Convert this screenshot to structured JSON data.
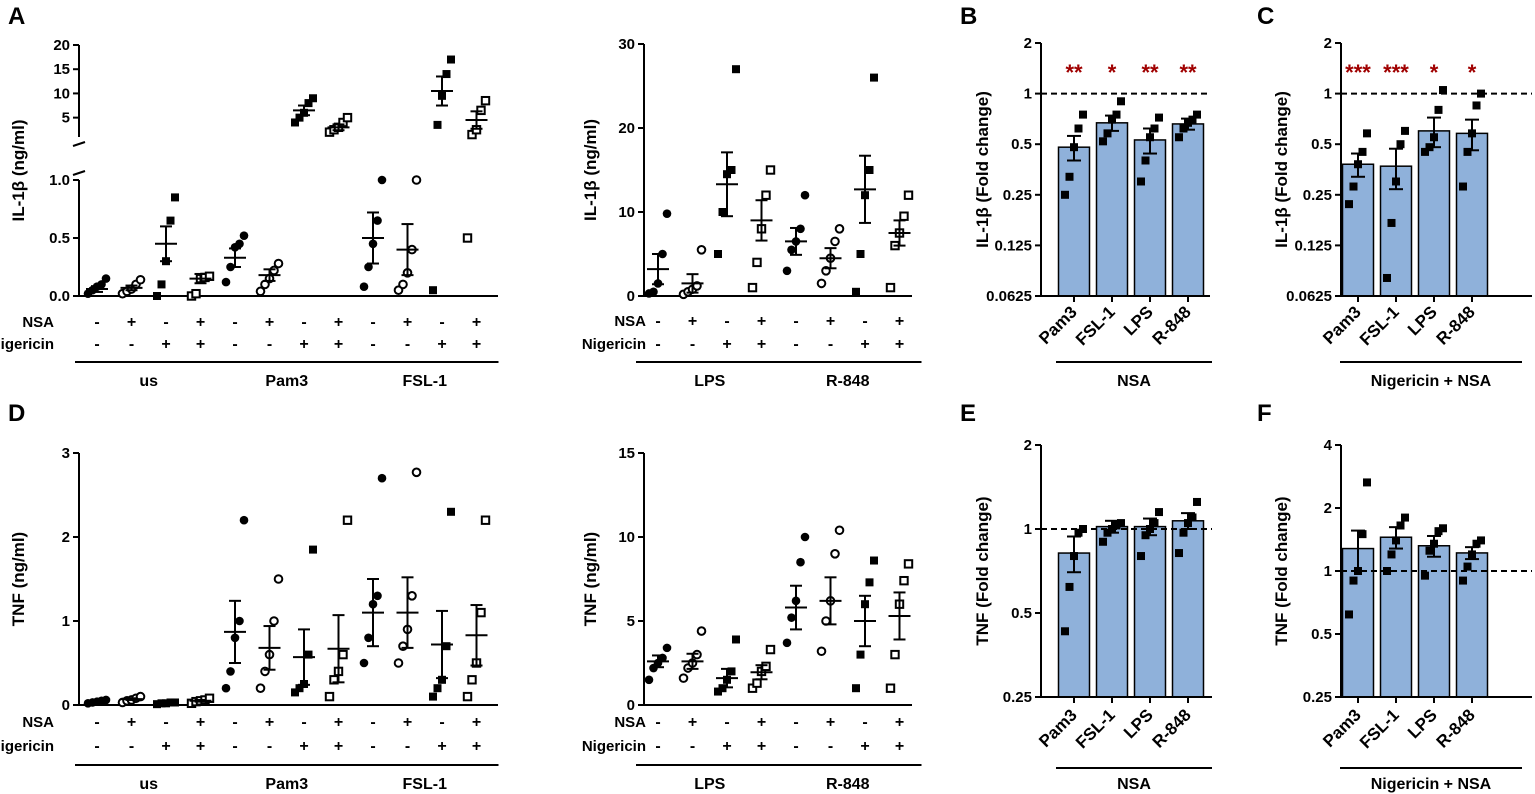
{
  "colors": {
    "bar_fill": "#8fb1da",
    "star": "#a00000",
    "ink": "#000000"
  },
  "labels": {
    "nsa": "NSA",
    "nigericin": "Nigericin"
  },
  "chart_data": [
    {
      "panel": "A",
      "id": "A1",
      "type": "scatter",
      "ylabel": "IL-1β (ng/ml)",
      "axis_break": true,
      "ylim_low": [
        0,
        1.0
      ],
      "ylim_high": [
        1.0,
        20
      ],
      "yticks_low": [
        "0.0",
        "0.5",
        "1.0"
      ],
      "yticks_high": [
        "5",
        "10",
        "15",
        "20"
      ],
      "nsa": [
        "-",
        "+",
        "-",
        "+",
        "-",
        "+",
        "-",
        "+",
        "-",
        "+",
        "-",
        "+"
      ],
      "nigericin": [
        "-",
        "-",
        "+",
        "+",
        "-",
        "-",
        "+",
        "+",
        "-",
        "-",
        "+",
        "+"
      ],
      "groups": [
        {
          "name": "us",
          "from": 0,
          "to": 3
        },
        {
          "name": "Pam3",
          "from": 4,
          "to": 7
        },
        {
          "name": "FSL-1",
          "from": 8,
          "to": 11
        }
      ],
      "series": [
        {
          "marker": "filled-circle",
          "values": [
            0.02,
            0.05,
            0.08,
            0.1,
            0.15
          ],
          "mean": 0.06,
          "sem": 0.025
        },
        {
          "marker": "open-circle",
          "values": [
            0.02,
            0.04,
            0.06,
            0.1,
            0.14
          ],
          "mean": 0.07,
          "sem": 0.02
        },
        {
          "marker": "filled-square",
          "values": [
            0.0,
            0.1,
            0.3,
            0.65,
            0.85
          ],
          "mean": 0.45,
          "sem": 0.15
        },
        {
          "marker": "open-square",
          "values": [
            0.0,
            0.02,
            0.15,
            0.16,
            0.17
          ],
          "mean": 0.15,
          "sem": 0.04
        },
        {
          "marker": "filled-circle",
          "values": [
            0.12,
            0.25,
            0.42,
            0.45,
            0.52
          ],
          "mean": 0.33,
          "sem": 0.08
        },
        {
          "marker": "open-circle",
          "values": [
            0.04,
            0.1,
            0.15,
            0.22,
            0.28
          ],
          "mean": 0.18,
          "sem": 0.05
        },
        {
          "marker": "filled-square",
          "values": [
            4,
            5,
            6,
            8,
            9
          ],
          "mean": 6.5,
          "sem": 1.0
        },
        {
          "marker": "open-square",
          "values": [
            2.0,
            2.5,
            3.0,
            4.0,
            5.0
          ],
          "mean": 3.0,
          "sem": 0.6
        },
        {
          "marker": "filled-circle",
          "values": [
            0.08,
            0.25,
            0.45,
            0.65,
            1.0
          ],
          "mean": 0.5,
          "sem": 0.22
        },
        {
          "marker": "open-circle",
          "values": [
            0.05,
            0.1,
            0.2,
            0.4,
            1.0
          ],
          "mean": 0.4,
          "sem": 0.22
        },
        {
          "marker": "filled-square",
          "values": [
            0.05,
            3.5,
            9.5,
            14,
            17
          ],
          "mean": 10.5,
          "sem": 3.0
        },
        {
          "marker": "open-square",
          "values": [
            0.5,
            1.5,
            2.5,
            6.5,
            8.5
          ],
          "mean": 4.5,
          "sem": 1.8
        }
      ]
    },
    {
      "panel": "",
      "id": "A2",
      "type": "scatter",
      "ylabel": "IL-1β (ng/ml)",
      "ylim": [
        0,
        30
      ],
      "yticks": [
        "0",
        "10",
        "20",
        "30"
      ],
      "nsa": [
        "-",
        "+",
        "-",
        "+",
        "-",
        "+",
        "-",
        "+"
      ],
      "nigericin": [
        "-",
        "-",
        "+",
        "+",
        "-",
        "-",
        "+",
        "+"
      ],
      "groups": [
        {
          "name": "LPS",
          "from": 0,
          "to": 3
        },
        {
          "name": "R-848",
          "from": 4,
          "to": 7
        }
      ],
      "series": [
        {
          "marker": "filled-circle",
          "values": [
            0.3,
            0.5,
            1.5,
            5,
            9.8
          ],
          "mean": 3.2,
          "sem": 1.8
        },
        {
          "marker": "open-circle",
          "values": [
            0.2,
            0.5,
            0.8,
            1.2,
            5.5
          ],
          "mean": 1.5,
          "sem": 1.1
        },
        {
          "marker": "filled-square",
          "values": [
            5,
            10,
            14.5,
            15,
            27
          ],
          "mean": 13.3,
          "sem": 3.8
        },
        {
          "marker": "open-square",
          "values": [
            1,
            4,
            8,
            12,
            15
          ],
          "mean": 9,
          "sem": 2.4
        },
        {
          "marker": "filled-circle",
          "values": [
            3,
            5.5,
            6.5,
            8,
            12
          ],
          "mean": 6.5,
          "sem": 1.6
        },
        {
          "marker": "open-circle",
          "values": [
            1.5,
            3,
            4.5,
            6.5,
            8
          ],
          "mean": 4.5,
          "sem": 1.2
        },
        {
          "marker": "filled-square",
          "values": [
            0.5,
            5,
            12,
            15,
            26
          ],
          "mean": 12.7,
          "sem": 4.0
        },
        {
          "marker": "open-square",
          "values": [
            1,
            6,
            7.5,
            9.5,
            12
          ],
          "mean": 7.5,
          "sem": 1.5
        }
      ]
    },
    {
      "panel": "B",
      "id": "B",
      "type": "bar",
      "scale": "log2",
      "ylabel": "IL-1β (Fold change)",
      "ylim": [
        0.0625,
        2
      ],
      "yticks": [
        "0.0625",
        "0.125",
        "0.25",
        "0.5",
        "1",
        "2"
      ],
      "categories": [
        "Pam3",
        "FSL-1",
        "LPS",
        "R-848"
      ],
      "group_label": "NSA",
      "values": [
        0.48,
        0.67,
        0.53,
        0.66
      ],
      "sem": [
        0.08,
        0.07,
        0.09,
        0.05
      ],
      "points": [
        [
          0.25,
          0.32,
          0.48,
          0.62,
          0.75
        ],
        [
          0.52,
          0.58,
          0.7,
          0.75,
          0.9
        ],
        [
          0.3,
          0.4,
          0.55,
          0.62,
          0.72
        ],
        [
          0.55,
          0.62,
          0.67,
          0.7,
          0.75
        ]
      ],
      "reference_line": 1,
      "significance": [
        "**",
        "*",
        "**",
        "**"
      ]
    },
    {
      "panel": "C",
      "id": "C",
      "type": "bar",
      "scale": "log2",
      "ylabel": "IL-1β (Fold change)",
      "ylim": [
        0.0625,
        2
      ],
      "yticks": [
        "0.0625",
        "0.125",
        "0.25",
        "0.5",
        "1",
        "2"
      ],
      "categories": [
        "Pam3",
        "FSL-1",
        "LPS",
        "R-848"
      ],
      "group_label": "Nigericin + NSA",
      "values": [
        0.38,
        0.37,
        0.6,
        0.58
      ],
      "sem": [
        0.06,
        0.1,
        0.12,
        0.12
      ],
      "points": [
        [
          0.22,
          0.28,
          0.38,
          0.45,
          0.58
        ],
        [
          0.08,
          0.17,
          0.3,
          0.5,
          0.6
        ],
        [
          0.45,
          0.48,
          0.55,
          0.8,
          1.05
        ],
        [
          0.28,
          0.45,
          0.58,
          0.85,
          1.0
        ]
      ],
      "reference_line": 1,
      "significance": [
        "***",
        "***",
        "*",
        "*"
      ]
    },
    {
      "panel": "D",
      "id": "D1",
      "type": "scatter",
      "ylabel": "TNF (ng/ml)",
      "ylim": [
        0,
        3
      ],
      "yticks": [
        "0",
        "1",
        "2",
        "3"
      ],
      "nsa": [
        "-",
        "+",
        "-",
        "+",
        "-",
        "+",
        "-",
        "+",
        "-",
        "+",
        "-",
        "+"
      ],
      "nigericin": [
        "-",
        "-",
        "+",
        "+",
        "-",
        "-",
        "+",
        "+",
        "-",
        "-",
        "+",
        "+"
      ],
      "groups": [
        {
          "name": "us",
          "from": 0,
          "to": 3
        },
        {
          "name": "Pam3",
          "from": 4,
          "to": 7
        },
        {
          "name": "FSL-1",
          "from": 8,
          "to": 11
        }
      ],
      "series": [
        {
          "marker": "filled-circle",
          "values": [
            0.02,
            0.03,
            0.04,
            0.05,
            0.06
          ],
          "mean": 0.04,
          "sem": 0.01
        },
        {
          "marker": "open-circle",
          "values": [
            0.03,
            0.05,
            0.06,
            0.08,
            0.1
          ],
          "mean": 0.07,
          "sem": 0.01
        },
        {
          "marker": "filled-square",
          "values": [
            0.01,
            0.02,
            0.02,
            0.03,
            0.03
          ],
          "mean": 0.02,
          "sem": 0.005
        },
        {
          "marker": "open-square",
          "values": [
            0.02,
            0.04,
            0.05,
            0.06,
            0.08
          ],
          "mean": 0.05,
          "sem": 0.01
        },
        {
          "marker": "filled-circle",
          "values": [
            0.2,
            0.4,
            0.8,
            1.0,
            2.2
          ],
          "mean": 0.87,
          "sem": 0.37
        },
        {
          "marker": "open-circle",
          "values": [
            0.2,
            0.4,
            0.6,
            1.0,
            1.5
          ],
          "mean": 0.68,
          "sem": 0.26
        },
        {
          "marker": "filled-square",
          "values": [
            0.15,
            0.2,
            0.25,
            0.6,
            1.85
          ],
          "mean": 0.57,
          "sem": 0.33
        },
        {
          "marker": "open-square",
          "values": [
            0.1,
            0.3,
            0.4,
            0.6,
            2.2
          ],
          "mean": 0.67,
          "sem": 0.4
        },
        {
          "marker": "filled-circle",
          "values": [
            0.5,
            0.8,
            1.2,
            1.3,
            2.7
          ],
          "mean": 1.1,
          "sem": 0.4
        },
        {
          "marker": "open-circle",
          "values": [
            0.5,
            0.7,
            0.9,
            1.3,
            2.77
          ],
          "mean": 1.1,
          "sem": 0.42
        },
        {
          "marker": "filled-square",
          "values": [
            0.1,
            0.2,
            0.3,
            0.7,
            2.3
          ],
          "mean": 0.72,
          "sem": 0.4
        },
        {
          "marker": "open-square",
          "values": [
            0.1,
            0.3,
            0.5,
            1.1,
            2.2
          ],
          "mean": 0.83,
          "sem": 0.36
        }
      ]
    },
    {
      "panel": "",
      "id": "D2",
      "type": "scatter",
      "ylabel": "TNF (ng/ml)",
      "ylim": [
        0,
        15
      ],
      "yticks": [
        "0",
        "5",
        "10",
        "15"
      ],
      "nsa": [
        "-",
        "+",
        "-",
        "+",
        "-",
        "+",
        "-",
        "+"
      ],
      "nigericin": [
        "-",
        "-",
        "+",
        "+",
        "-",
        "-",
        "+",
        "+"
      ],
      "groups": [
        {
          "name": "LPS",
          "from": 0,
          "to": 3
        },
        {
          "name": "R-848",
          "from": 4,
          "to": 7
        }
      ],
      "series": [
        {
          "marker": "filled-circle",
          "values": [
            1.5,
            2.2,
            2.5,
            2.8,
            3.4
          ],
          "mean": 2.6,
          "sem": 0.35
        },
        {
          "marker": "open-circle",
          "values": [
            1.6,
            2.2,
            2.5,
            3.0,
            4.4
          ],
          "mean": 2.6,
          "sem": 0.45
        },
        {
          "marker": "filled-square",
          "values": [
            0.8,
            1.0,
            1.5,
            2.0,
            3.9
          ],
          "mean": 1.6,
          "sem": 0.55
        },
        {
          "marker": "open-square",
          "values": [
            1.0,
            1.3,
            2.0,
            2.3,
            3.3
          ],
          "mean": 1.95,
          "sem": 0.42
        },
        {
          "marker": "filled-circle",
          "values": [
            3.7,
            5.2,
            6.2,
            8.5,
            10.0
          ],
          "mean": 5.8,
          "sem": 1.3
        },
        {
          "marker": "open-circle",
          "values": [
            3.2,
            5.0,
            6.2,
            9.0,
            10.4
          ],
          "mean": 6.2,
          "sem": 1.4
        },
        {
          "marker": "filled-square",
          "values": [
            1.0,
            3.0,
            6.0,
            7.3,
            8.6
          ],
          "mean": 5.0,
          "sem": 1.5
        },
        {
          "marker": "open-square",
          "values": [
            1.0,
            3.0,
            6.0,
            7.4,
            8.4
          ],
          "mean": 5.3,
          "sem": 1.4
        }
      ]
    },
    {
      "panel": "E",
      "id": "E",
      "type": "bar",
      "scale": "log2",
      "ylabel": "TNF (Fold change)",
      "ylim": [
        0.25,
        2
      ],
      "yticks": [
        "0.25",
        "0.5",
        "1",
        "2"
      ],
      "categories": [
        "Pam3",
        "FSL-1",
        "LPS",
        "R-848"
      ],
      "group_label": "NSA",
      "values": [
        0.82,
        1.02,
        1.02,
        1.07
      ],
      "sem": [
        0.12,
        0.05,
        0.07,
        0.07
      ],
      "points": [
        [
          0.43,
          0.62,
          0.8,
          0.97,
          1.0
        ],
        [
          0.9,
          0.97,
          1.0,
          1.03,
          1.05
        ],
        [
          0.8,
          0.95,
          1.0,
          1.05,
          1.15
        ],
        [
          0.82,
          0.97,
          1.05,
          1.1,
          1.25
        ]
      ],
      "reference_line": 1,
      "significance": [
        "",
        "",
        "",
        ""
      ]
    },
    {
      "panel": "F",
      "id": "F",
      "type": "bar",
      "scale": "log2",
      "ylabel": "TNF (Fold change)",
      "ylim": [
        0.25,
        4
      ],
      "yticks": [
        "0.25",
        "0.5",
        "1",
        "2",
        "4"
      ],
      "categories": [
        "Pam3",
        "FSL-1",
        "LPS",
        "R-848"
      ],
      "group_label": "Nigericin + NSA",
      "values": [
        1.28,
        1.45,
        1.32,
        1.22
      ],
      "sem": [
        0.28,
        0.17,
        0.15,
        0.08
      ],
      "points": [
        [
          0.62,
          0.9,
          1.0,
          1.5,
          2.65
        ],
        [
          1.0,
          1.2,
          1.4,
          1.65,
          1.8
        ],
        [
          0.95,
          1.25,
          1.35,
          1.55,
          1.6
        ],
        [
          0.9,
          1.05,
          1.2,
          1.35,
          1.4
        ]
      ],
      "reference_line": 1,
      "significance": [
        "",
        "",
        "",
        ""
      ]
    }
  ]
}
